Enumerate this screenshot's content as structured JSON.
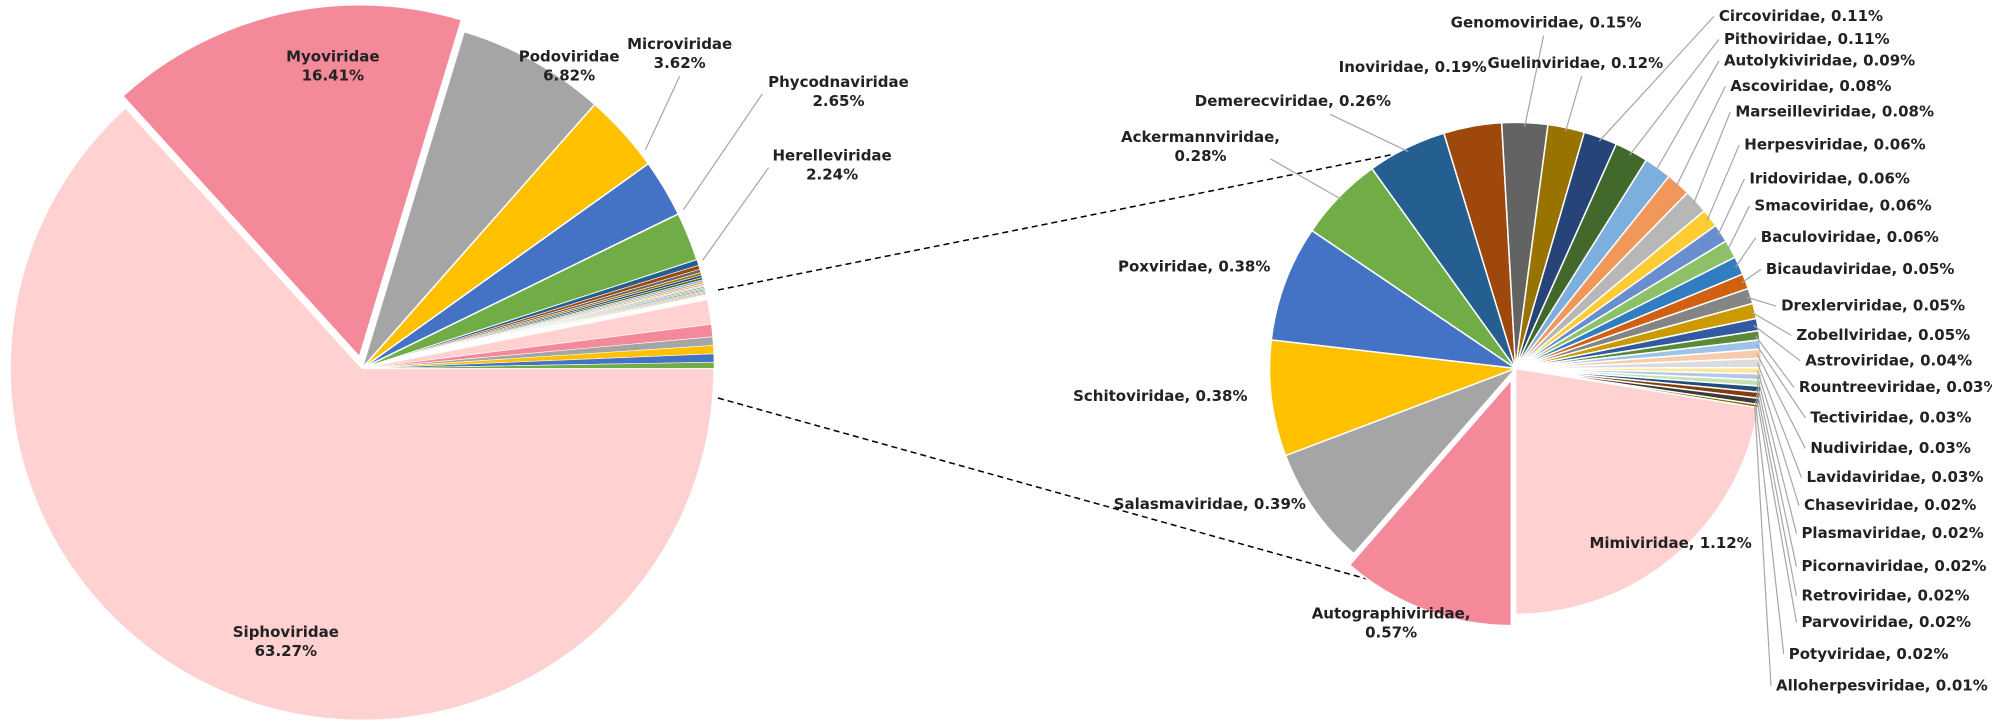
{
  "chart_data": [
    {
      "type": "pie",
      "categories": [
        "Siphoviridae",
        "Myoviridae",
        "Podoviridae",
        "Microviridae",
        "Phycodnaviridae",
        "Herelleviridae"
      ],
      "values": [
        63.27,
        16.41,
        6.82,
        3.62,
        2.65,
        2.24
      ],
      "value_labels": [
        "63.27%",
        "16.41%",
        "6.82%",
        "3.62%",
        "2.65%",
        "2.24%"
      ],
      "colors": [
        "#ffd1d1",
        "#f4899a",
        "#a5a5a5",
        "#ffc000",
        "#4472c4",
        "#70ad47"
      ]
    },
    {
      "type": "pie",
      "labels": [
        "Autographiviridae, 0.57%",
        "Salasmaviridae, 0.39%",
        "Schitoviridae, 0.38%",
        "Poxviridae, 0.38%",
        "Ackermannviridae, 0.28%",
        "Demerecviridae, 0.26%",
        "Inoviridae, 0.19%",
        "Genomoviridae, 0.15%",
        "Guelinviridae, 0.12%",
        "Circoviridae, 0.11%",
        "Pithoviridae, 0.11%",
        "Autolykiviridae, 0.09%",
        "Ascoviridae, 0.08%",
        "Marseilleviridae, 0.08%",
        "Herpesviridae, 0.06%",
        "Iridoviridae, 0.06%",
        "Smacoviridae, 0.06%",
        "Baculoviridae, 0.06%",
        "Bicaudaviridae, 0.05%",
        "Drexlerviridae, 0.05%",
        "Zobellviridae, 0.05%",
        "Astroviridae, 0.04%",
        "Rountreeviridae, 0.03%",
        "Tectiviridae, 0.03%",
        "Nudiviridae, 0.03%",
        "Lavidaviridae, 0.03%",
        "Chaseviridae, 0.02%",
        "Plasmaviridae, 0.02%",
        "Picornaviridae, 0.02%",
        "Retroviridae, 0.02%",
        "Parvoviridae, 0.02%",
        "Potyviridae, 0.02%",
        "Alloherpesviridae, 0.01%",
        "Mimiviridae, 1.12%"
      ],
      "values": [
        0.57,
        0.39,
        0.38,
        0.38,
        0.28,
        0.26,
        0.19,
        0.15,
        0.12,
        0.11,
        0.11,
        0.09,
        0.08,
        0.08,
        0.06,
        0.06,
        0.06,
        0.06,
        0.05,
        0.05,
        0.05,
        0.04,
        0.03,
        0.03,
        0.03,
        0.03,
        0.02,
        0.02,
        0.02,
        0.02,
        0.02,
        0.02,
        0.01,
        1.12
      ],
      "colors": [
        "#f4899a",
        "#a5a5a5",
        "#ffc000",
        "#4472c4",
        "#70ad47",
        "#255e91",
        "#9e480e",
        "#636363",
        "#997300",
        "#264478",
        "#43682b",
        "#7cafdd",
        "#f1975a",
        "#b7b7b7",
        "#ffcd33",
        "#698ed0",
        "#8cc168",
        "#327dc2",
        "#d26012",
        "#848484",
        "#cc9a00",
        "#335aa1",
        "#5a8a39",
        "#9dc3e6",
        "#f8cbad",
        "#dbdbdb",
        "#ffe699",
        "#b4c7e7",
        "#c5e0b4",
        "#1f4e79",
        "#843c0c",
        "#3a3a3a",
        "#7f6000",
        "#ffd1d1"
      ]
    }
  ]
}
